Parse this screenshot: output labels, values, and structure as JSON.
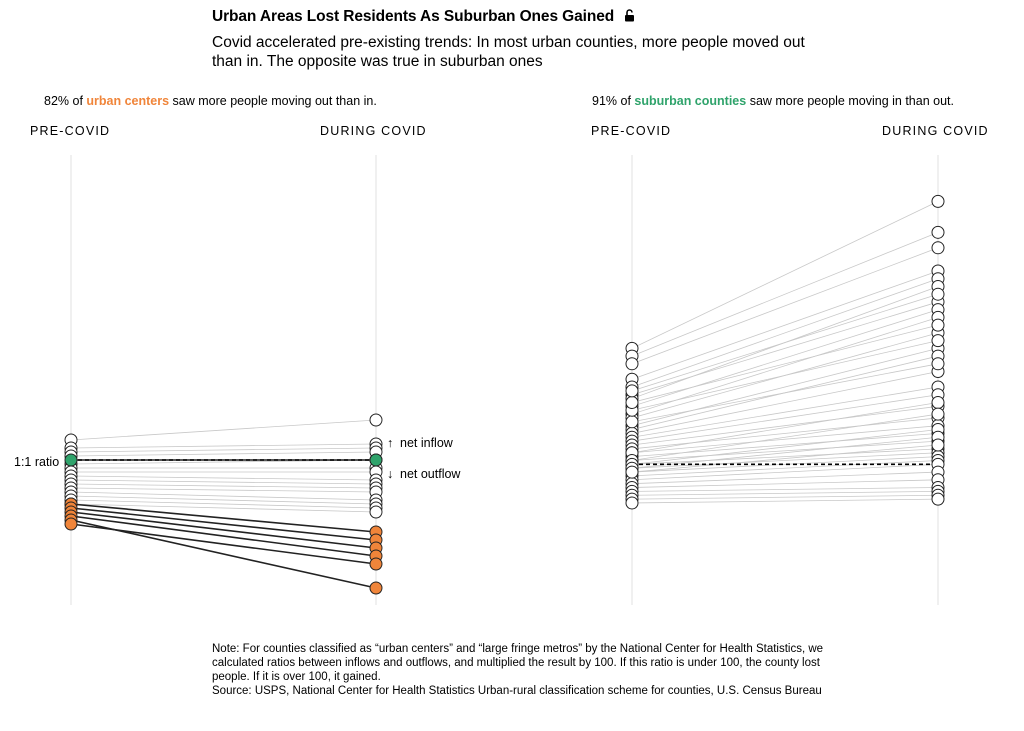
{
  "header": {
    "title": "Urban Areas Lost Residents As Suburban Ones Gained",
    "subtitle": "Covid accelerated pre-existing trends: In most urban counties, more people moved out than in. The opposite was true in suburban ones"
  },
  "left_panel": {
    "caption_pre": "82% of ",
    "caption_highlight": "urban centers",
    "caption_post": " saw more people moving out than in.",
    "axis_pre": "PRE-COVID",
    "axis_during": "DURING COVID",
    "ratio_label": "1:1 ratio",
    "inflow_label": "net inflow",
    "outflow_label": "net outflow",
    "inflow_arrow": "↑",
    "outflow_arrow": "↓"
  },
  "right_panel": {
    "caption_pre": "91% of ",
    "caption_highlight": "suburban counties",
    "caption_post": " saw more people moving in than out.",
    "axis_pre": "PRE-COVID",
    "axis_during": "DURING COVID"
  },
  "note": {
    "text": "Note: For counties classified as “urban centers” and “large fringe metros” by the National Center for Health Statistics, we calculated ratios between inflows and outflows, and multiplied the result by 100. If this ratio is under 100, the county lost people. If it is over 100, it gained.",
    "source": "Source: USPS, National Center for Health Statistics Urban-rural classification scheme for counties, U.S. Census Bureau"
  },
  "colors": {
    "urban": "#f0853a",
    "suburban": "#2fa36b",
    "gray_line": "#c8c8c8",
    "dark_line": "#222222"
  },
  "chart_data": [
    {
      "type": "slope",
      "title": "Urban centers",
      "categories": [
        "PRE-COVID",
        "DURING COVID"
      ],
      "reference": 100,
      "ylim": [
        60,
        140
      ],
      "series": [
        {
          "name": "highlight-inflow",
          "values": [
            100,
            100
          ],
          "style": "green"
        },
        {
          "name": "gray",
          "values": [
            105,
            110
          ]
        },
        {
          "name": "gray",
          "values": [
            103,
            104
          ]
        },
        {
          "name": "gray",
          "values": [
            102,
            103
          ]
        },
        {
          "name": "gray",
          "values": [
            101,
            102
          ]
        },
        {
          "name": "gray",
          "values": [
            99,
            100
          ]
        },
        {
          "name": "gray",
          "values": [
            98,
            98
          ]
        },
        {
          "name": "gray",
          "values": [
            97,
            97
          ]
        },
        {
          "name": "gray",
          "values": [
            96,
            95
          ]
        },
        {
          "name": "gray",
          "values": [
            95,
            94
          ]
        },
        {
          "name": "gray",
          "values": [
            94,
            93
          ]
        },
        {
          "name": "gray",
          "values": [
            93,
            92
          ]
        },
        {
          "name": "gray",
          "values": [
            92,
            90
          ]
        },
        {
          "name": "gray",
          "values": [
            91,
            89
          ]
        },
        {
          "name": "gray",
          "values": [
            90,
            88
          ]
        },
        {
          "name": "gray",
          "values": [
            89,
            87
          ]
        },
        {
          "name": "outflow",
          "values": [
            89,
            82
          ]
        },
        {
          "name": "outflow",
          "values": [
            88,
            80
          ]
        },
        {
          "name": "outflow",
          "values": [
            87,
            78
          ]
        },
        {
          "name": "outflow",
          "values": [
            86,
            76
          ]
        },
        {
          "name": "outflow",
          "values": [
            85,
            68
          ]
        },
        {
          "name": "outflow",
          "values": [
            84,
            74
          ]
        }
      ]
    },
    {
      "type": "slope",
      "title": "Suburban counties",
      "categories": [
        "PRE-COVID",
        "DURING COVID"
      ],
      "reference": 100,
      "ylim": [
        60,
        180
      ],
      "series": [
        {
          "name": "gray",
          "values": [
            130,
            168
          ]
        },
        {
          "name": "gray",
          "values": [
            128,
            160
          ]
        },
        {
          "name": "gray",
          "values": [
            126,
            156
          ]
        },
        {
          "name": "gray",
          "values": [
            122,
            150
          ]
        },
        {
          "name": "gray",
          "values": [
            120,
            148
          ]
        },
        {
          "name": "gray",
          "values": [
            118,
            142
          ]
        },
        {
          "name": "gray",
          "values": [
            117,
            146
          ]
        },
        {
          "name": "gray",
          "values": [
            115,
            140
          ]
        },
        {
          "name": "gray",
          "values": [
            113,
            138
          ]
        },
        {
          "name": "gray",
          "values": [
            112,
            134
          ]
        },
        {
          "name": "gray",
          "values": [
            110,
            130
          ]
        },
        {
          "name": "gray",
          "values": [
            109,
            128
          ]
        },
        {
          "name": "gray",
          "values": [
            108,
            124
          ]
        },
        {
          "name": "gray",
          "values": [
            107,
            120
          ]
        },
        {
          "name": "gray",
          "values": [
            106,
            118
          ]
        },
        {
          "name": "gray",
          "values": [
            105,
            115
          ]
        },
        {
          "name": "gray",
          "values": [
            104,
            112
          ]
        },
        {
          "name": "gray",
          "values": [
            103,
            110
          ]
        },
        {
          "name": "gray",
          "values": [
            102,
            108
          ]
        },
        {
          "name": "gray",
          "values": [
            101,
            106
          ]
        },
        {
          "name": "gray",
          "values": [
            100,
            104
          ]
        },
        {
          "name": "gray",
          "values": [
            99,
            103
          ]
        },
        {
          "name": "gray",
          "values": [
            98,
            102
          ]
        },
        {
          "name": "gray",
          "values": [
            97,
            101
          ]
        },
        {
          "name": "gray",
          "values": [
            96,
            100
          ]
        },
        {
          "name": "gray",
          "values": [
            95,
            98
          ]
        },
        {
          "name": "gray",
          "values": [
            94,
            96
          ]
        },
        {
          "name": "gray",
          "values": [
            93,
            94
          ]
        },
        {
          "name": "gray",
          "values": [
            92,
            93
          ]
        },
        {
          "name": "gray",
          "values": [
            91,
            92
          ]
        },
        {
          "name": "gray",
          "values": [
            90,
            91
          ]
        },
        {
          "name": "gray",
          "values": [
            111,
            126
          ]
        },
        {
          "name": "gray",
          "values": [
            114,
            132
          ]
        },
        {
          "name": "gray",
          "values": [
            116,
            136
          ]
        },
        {
          "name": "gray",
          "values": [
            119,
            144
          ]
        },
        {
          "name": "gray",
          "values": [
            103,
            116
          ]
        },
        {
          "name": "gray",
          "values": [
            101,
            113
          ]
        },
        {
          "name": "gray",
          "values": [
            100,
            109
          ]
        },
        {
          "name": "gray",
          "values": [
            99,
            107
          ]
        },
        {
          "name": "gray",
          "values": [
            98,
            105
          ]
        }
      ]
    }
  ]
}
